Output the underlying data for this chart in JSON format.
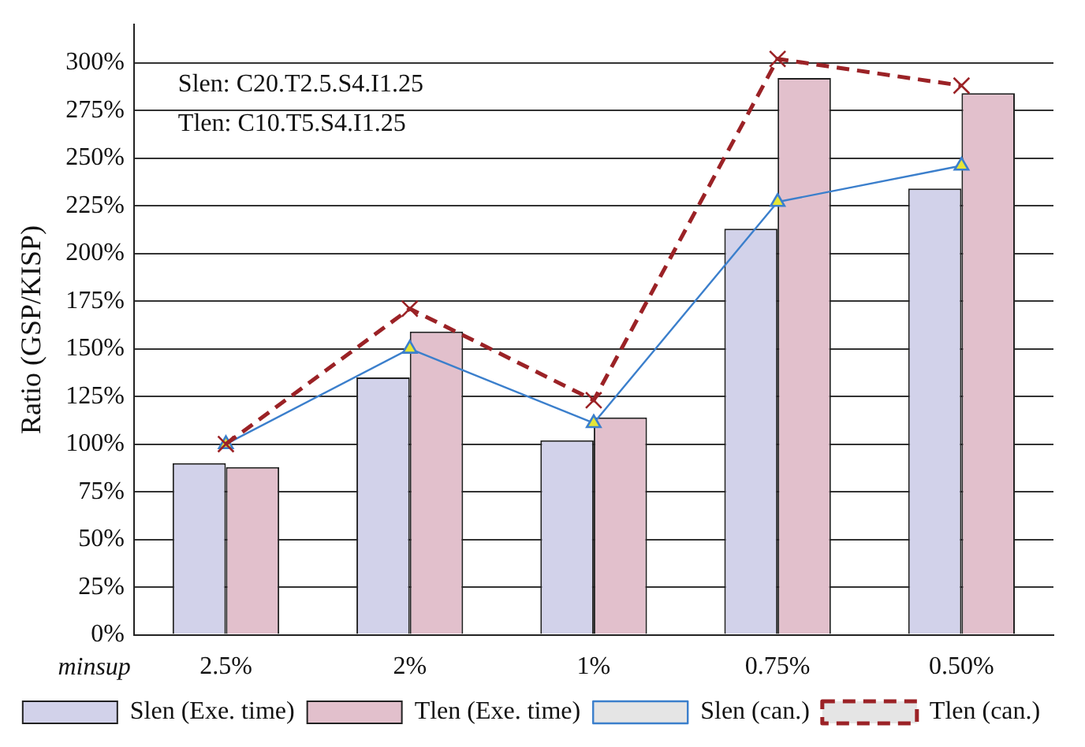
{
  "chart_data": {
    "type": "bar",
    "ylabel": "Ratio (GSP/KISP)",
    "xlabel": "minsup",
    "categories": [
      "2.5%",
      "2%",
      "1%",
      "0.75%",
      "0.50%"
    ],
    "series": [
      {
        "name": "Slen (Exe. time)",
        "color": "#d2d2ea",
        "values": [
          90,
          135,
          102,
          213,
          234
        ]
      },
      {
        "name": "Tlen (Exe. time)",
        "color": "#e2c0cc",
        "values": [
          88,
          159,
          114,
          292,
          284
        ]
      },
      {
        "name": "Slen (can.)",
        "type": "line",
        "color": "#3b7fcc",
        "marker": "triangle",
        "line_style": "solid",
        "values": [
          100,
          150,
          111,
          227,
          246
        ]
      },
      {
        "name": "Tlen (can.)",
        "type": "line",
        "color": "#9b2226",
        "marker": "cross",
        "line_style": "dashed",
        "values": [
          100,
          171,
          123,
          302,
          288
        ]
      }
    ],
    "ylim": [
      0,
      320
    ],
    "yticks": [
      {
        "value": 0,
        "label": "0%"
      },
      {
        "value": 25,
        "label": "25%"
      },
      {
        "value": 50,
        "label": "50%"
      },
      {
        "value": 75,
        "label": "75%"
      },
      {
        "value": 100,
        "label": "100%"
      },
      {
        "value": 125,
        "label": "125%"
      },
      {
        "value": 150,
        "label": "150%"
      },
      {
        "value": 175,
        "label": "175%"
      },
      {
        "value": 200,
        "label": "200%"
      },
      {
        "value": 225,
        "label": "225%"
      },
      {
        "value": 250,
        "label": "250%"
      },
      {
        "value": 275,
        "label": "275%"
      },
      {
        "value": 300,
        "label": "300%"
      }
    ],
    "grid": "y",
    "legend": "bottom",
    "annotations": [
      "Slen: C20.T2.5.S4.I1.25",
      "Tlen: C10.T5.S4.I1.25"
    ]
  }
}
